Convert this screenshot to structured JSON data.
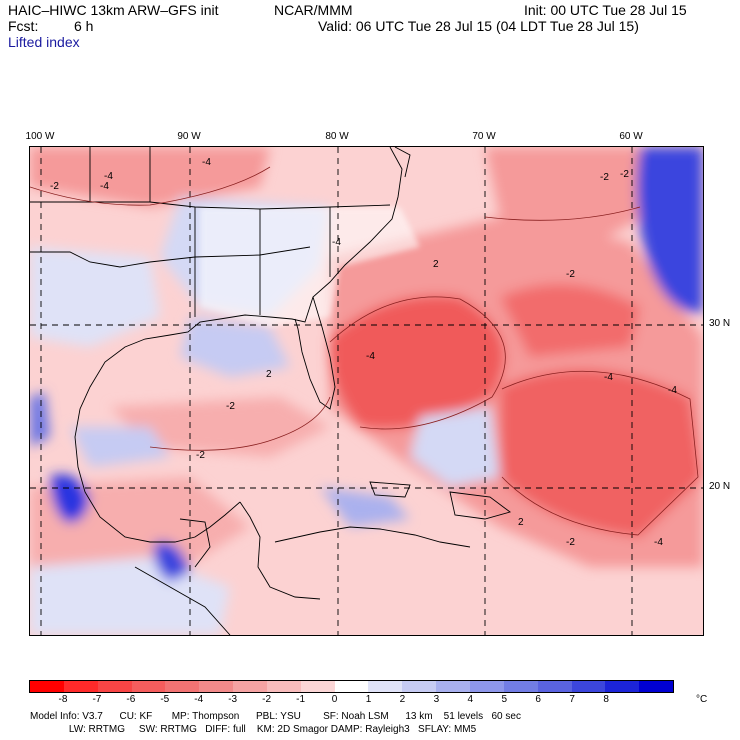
{
  "header": {
    "model": "HAIC–HIWC 13km ARW–GFS init",
    "org": "NCAR/MMM",
    "init": "Init: 00 UTC Tue 28 Jul 15",
    "fcst_label": "Fcst:",
    "fcst_value": "6 h",
    "valid": "Valid: 06 UTC Tue 28 Jul 15 (04 LDT Tue 28 Jul 15)",
    "field": "Lifted index"
  },
  "map": {
    "lon_labels": [
      "100 W",
      "90 W",
      "80 W",
      "70 W",
      "60 W"
    ],
    "lat_labels": [
      "30 N",
      "20 N"
    ],
    "contour_labels": [
      "-2",
      "-4",
      "-4",
      "-4",
      "2",
      "-2",
      "-2",
      "-4",
      "-2",
      "-4",
      "-4",
      "-2",
      "2",
      "-4",
      "-2",
      "-4",
      "2",
      "-2"
    ],
    "land_color": "#ffffff",
    "colors": {
      "strong_negative": "#f05a5a",
      "negative": "#f59a9a",
      "weak_negative": "#fcd2d2",
      "weak_positive": "#d4d9f5",
      "positive": "#8f98ea",
      "strong_positive": "#2b34e0"
    }
  },
  "colorbar": {
    "colors": [
      "#ff0000",
      "#ff2a2a",
      "#f84545",
      "#f55d5d",
      "#f27373",
      "#f28a8a",
      "#f5a3a3",
      "#f8bcbc",
      "#fbd6d6",
      "#ffffff",
      "#e0e3f8",
      "#c6cbf3",
      "#a8b0ee",
      "#8e97ea",
      "#727de4",
      "#5a63e0",
      "#3c46dc",
      "#1c24d8",
      "#0000d2"
    ],
    "tick_labels": [
      "-8",
      "-7",
      "-6",
      "-5",
      "-4",
      "-3",
      "-2",
      "-1",
      "0",
      "1",
      "2",
      "3",
      "4",
      "5",
      "6",
      "7",
      "8"
    ],
    "unit": "°C"
  },
  "footer": {
    "line1": "Model Info: V3.7      CU: KF       MP: Thompson      PBL: YSU        SF: Noah LSM      13 km    51 levels   60 sec",
    "line2": "              LW: RRTMG     SW: RRTMG   DIFF: full    KM: 2D Smagor DAMP: Rayleigh3   SFLAY: MM5"
  }
}
